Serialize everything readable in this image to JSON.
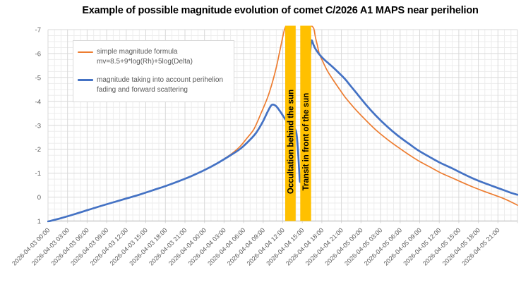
{
  "title": "Example of possible magnitude evolution of comet C/2026 A1 MAPS near perihelion",
  "legend": {
    "items": [
      {
        "color": "#ED7D31",
        "line1": "simple magnitude formula",
        "line2": "mv=8.5+9*log(Rh)+5log(Delta)"
      },
      {
        "color": "#4472C4",
        "line1": "magnitude taking into account perihelion",
        "line2": "fading and forward scattering"
      }
    ]
  },
  "chart_data": {
    "type": "line",
    "title": "Example of possible magnitude evolution of comet C/2026 A1 MAPS near perihelion",
    "x_axis": {
      "start": "2026-04-03 00:00",
      "end": "2026-04-06 00:00",
      "total_hours": 72,
      "tick_interval_hours": 3,
      "minor_interval_hours": 1,
      "labels": [
        "2026-04-03 00:00",
        "2026-04-03 03:00",
        "2026-04-03 06:00",
        "2026-04-03 09:00",
        "2026-04-03 12:00",
        "2026-04-03 15:00",
        "2026-04-03 18:00",
        "2026-04-03 21:00",
        "2026-04-04 00:00",
        "2026-04-04 03:00",
        "2026-04-04 06:00",
        "2026-04-04 09:00",
        "2026-04-04 12:00",
        "2026-04-04 15:00",
        "2026-04-04 18:00",
        "2026-04-04 21:00",
        "2026-04-05 00:00",
        "2026-04-05 03:00",
        "2026-04-05 06:00",
        "2026-04-05 09:00",
        "2026-04-05 12:00",
        "2026-04-05 15:00",
        "2026-04-05 18:00",
        "2026-04-05 21:00"
      ]
    },
    "y_axis": {
      "min": -7,
      "max": 1,
      "tick_step": 1,
      "minor_step": 0.25,
      "inverted": true,
      "ticks": [
        "-7",
        "-6",
        "-5",
        "-4",
        "-3",
        "-2",
        "-1",
        "0",
        "1"
      ]
    },
    "grid": {
      "major_color": "#D9D9D9",
      "minor_color": "#EDEDED",
      "axis_line_color": "#BFBFBF"
    },
    "text_color": "#595959",
    "bands": [
      {
        "label": "Occultation behind the sun",
        "start_hours": 36.38,
        "end_hours": 37.98,
        "color": "#FFC000",
        "text_color": "#000000"
      },
      {
        "label": "Transit in front of the sun",
        "start_hours": 38.68,
        "end_hours": 40.35,
        "color": "#FFC000",
        "text_color": "#000000"
      }
    ],
    "series": [
      {
        "name": "simple magnitude formula mv=8.5+9*log(Rh)+5log(Delta)",
        "color": "#ED7D31",
        "width": 1.7,
        "points": [
          [
            0,
            1.02
          ],
          [
            2,
            0.88
          ],
          [
            4,
            0.72
          ],
          [
            6,
            0.55
          ],
          [
            8,
            0.38
          ],
          [
            10,
            0.22
          ],
          [
            12,
            0.06
          ],
          [
            14,
            -0.1
          ],
          [
            16,
            -0.28
          ],
          [
            18,
            -0.46
          ],
          [
            20,
            -0.66
          ],
          [
            22,
            -0.88
          ],
          [
            24,
            -1.13
          ],
          [
            26,
            -1.42
          ],
          [
            28,
            -1.78
          ],
          [
            29.4,
            -2.1
          ],
          [
            30.5,
            -2.46
          ],
          [
            31.6,
            -2.85
          ],
          [
            32.7,
            -3.52
          ],
          [
            33.8,
            -4.26
          ],
          [
            34.9,
            -5.29
          ],
          [
            35.6,
            -6.17
          ],
          [
            36.27,
            -7.0
          ],
          [
            36.8,
            -7.25
          ],
          [
            37.5,
            -7.35
          ],
          [
            38.4,
            -7.38
          ],
          [
            39.5,
            -7.32
          ],
          [
            40.3,
            -7.18
          ],
          [
            40.75,
            -7.05
          ],
          [
            41,
            -6.7
          ],
          [
            41.3,
            -6.35
          ],
          [
            41.6,
            -6.0
          ],
          [
            42,
            -5.75
          ],
          [
            42.8,
            -5.3
          ],
          [
            43.6,
            -4.95
          ],
          [
            44.6,
            -4.55
          ],
          [
            45.5,
            -4.2
          ],
          [
            46.4,
            -3.9
          ],
          [
            47.3,
            -3.62
          ],
          [
            48.8,
            -3.2
          ],
          [
            50.3,
            -2.8
          ],
          [
            52,
            -2.42
          ],
          [
            53.6,
            -2.1
          ],
          [
            55.2,
            -1.8
          ],
          [
            56.8,
            -1.52
          ],
          [
            58.5,
            -1.27
          ],
          [
            60.1,
            -1.03
          ],
          [
            62,
            -0.8
          ],
          [
            63.3,
            -0.64
          ],
          [
            65,
            -0.44
          ],
          [
            66.6,
            -0.27
          ],
          [
            68.2,
            -0.11
          ],
          [
            69.8,
            0.05
          ],
          [
            71,
            0.2
          ],
          [
            72,
            0.34
          ]
        ]
      },
      {
        "name": "magnitude taking into account perihelion fading and forward scattering",
        "color": "#4472C4",
        "width": 2.7,
        "points": [
          [
            0,
            1.02
          ],
          [
            2,
            0.88
          ],
          [
            4,
            0.72
          ],
          [
            6,
            0.55
          ],
          [
            8,
            0.38
          ],
          [
            10,
            0.22
          ],
          [
            12,
            0.06
          ],
          [
            14,
            -0.1
          ],
          [
            16,
            -0.28
          ],
          [
            18,
            -0.46
          ],
          [
            20,
            -0.66
          ],
          [
            22,
            -0.88
          ],
          [
            24,
            -1.13
          ],
          [
            26,
            -1.42
          ],
          [
            28,
            -1.75
          ],
          [
            29.5,
            -2.02
          ],
          [
            31,
            -2.4
          ],
          [
            32,
            -2.72
          ],
          [
            33,
            -3.18
          ],
          [
            33.7,
            -3.58
          ],
          [
            34.3,
            -3.85
          ],
          [
            34.9,
            -3.82
          ],
          [
            35.5,
            -3.62
          ],
          [
            36.4,
            -3.25
          ],
          [
            37.2,
            -2.95
          ],
          [
            38,
            -2.78
          ],
          [
            38.3,
            -2.1
          ],
          [
            38.5,
            -1.2
          ],
          [
            38.62,
            -0.68
          ],
          [
            38.78,
            -0.7
          ],
          [
            38.95,
            -1.1
          ],
          [
            39.2,
            -1.95
          ],
          [
            39.6,
            -3.6
          ],
          [
            40,
            -5.3
          ],
          [
            40.25,
            -6.2
          ],
          [
            40.42,
            -6.55
          ],
          [
            40.7,
            -6.38
          ],
          [
            41,
            -6.2
          ],
          [
            41.6,
            -5.97
          ],
          [
            42.4,
            -5.74
          ],
          [
            43.4,
            -5.5
          ],
          [
            44.5,
            -5.22
          ],
          [
            45.5,
            -4.95
          ],
          [
            46.4,
            -4.65
          ],
          [
            47.3,
            -4.35
          ],
          [
            48.8,
            -3.85
          ],
          [
            50.3,
            -3.4
          ],
          [
            52,
            -2.95
          ],
          [
            53.6,
            -2.58
          ],
          [
            55.2,
            -2.26
          ],
          [
            56.8,
            -1.95
          ],
          [
            58.5,
            -1.68
          ],
          [
            60.1,
            -1.44
          ],
          [
            62,
            -1.2
          ],
          [
            63.3,
            -1.02
          ],
          [
            65,
            -0.8
          ],
          [
            66.6,
            -0.62
          ],
          [
            68.2,
            -0.46
          ],
          [
            69.8,
            -0.3
          ],
          [
            71,
            -0.18
          ],
          [
            72,
            -0.1
          ]
        ]
      }
    ]
  }
}
